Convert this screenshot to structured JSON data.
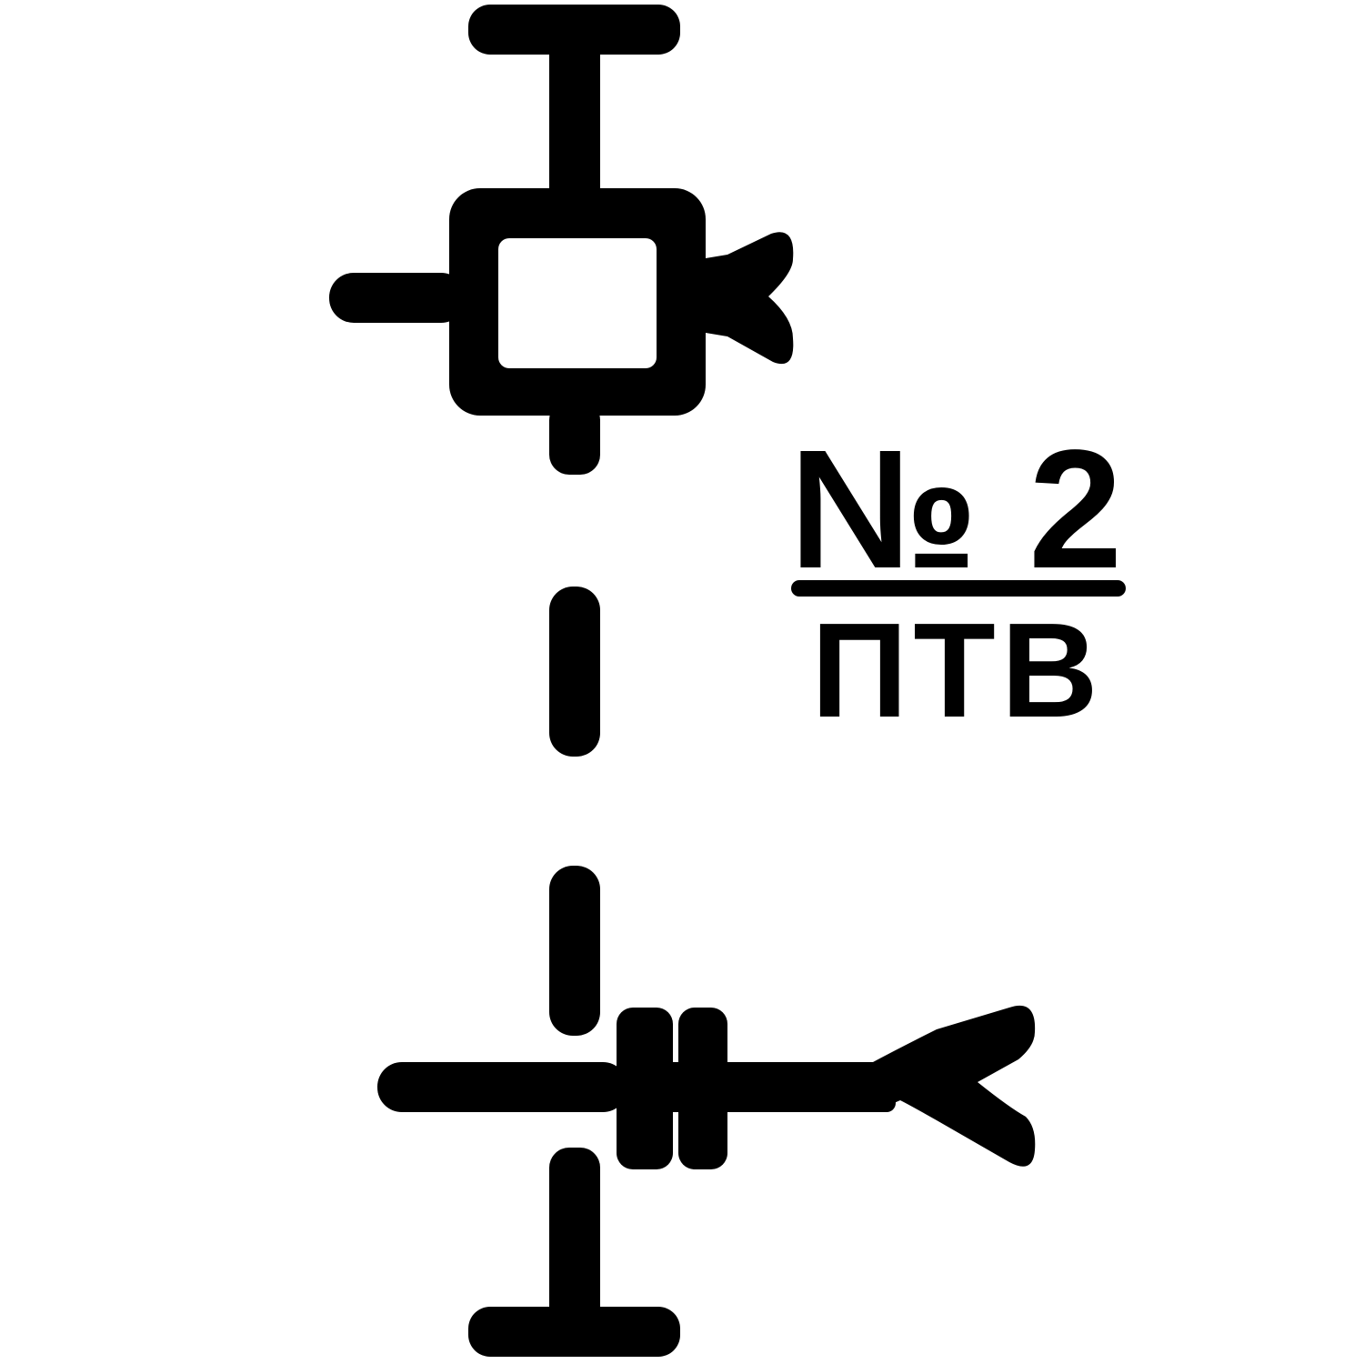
{
  "symbol": {
    "number": "№ 2",
    "type": "ПТВ"
  },
  "colors": {
    "ink": "#000000",
    "background": "#ffffff"
  }
}
